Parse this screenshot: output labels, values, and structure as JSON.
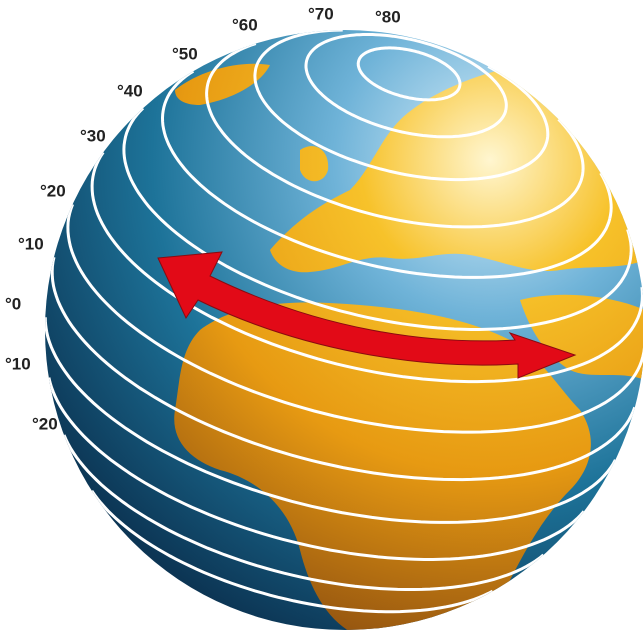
{
  "latitude_labels": [
    "°80",
    "°70",
    "°60",
    "°50",
    "°40",
    "°30",
    "°20",
    "°10",
    "°0",
    "°10",
    "°20"
  ]
}
